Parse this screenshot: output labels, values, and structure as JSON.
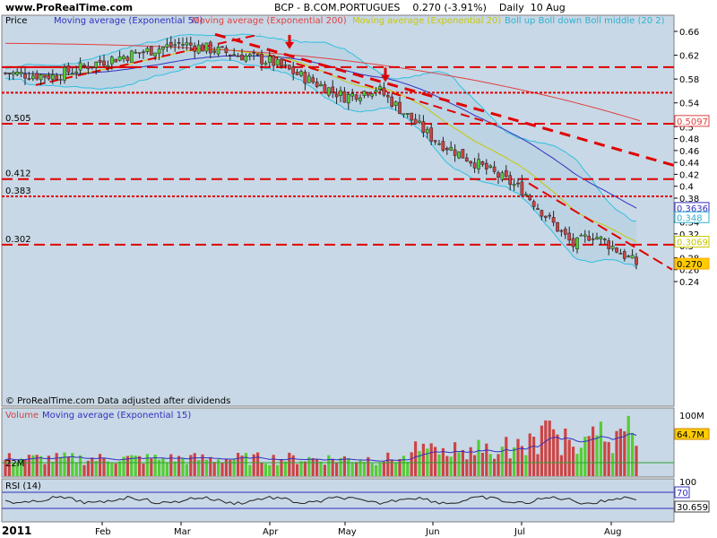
{
  "header": {
    "site": "www.ProRealTime.com",
    "symbol": "BCP - B.COM.PORTUGUES",
    "change": "0.270 (-3.91%)",
    "period": "Daily  10 Aug"
  },
  "legend": {
    "price": "Price",
    "ema50": "Moving average (Exponential 50)",
    "ema200": "Moving average (Exponential 200)",
    "ema20": "Moving average (Exponential 20)",
    "boll": "Boll up Boll down Boll middle (20 2)"
  },
  "footer_note": "© ProRealTime.com  Data adjusted after dividends",
  "volume_legend": {
    "volume": "Volume",
    "ma": "Moving average (Exponential 15)"
  },
  "rsi_legend": "RSI (14)",
  "x_labels": [
    "2011",
    "Feb",
    "Mar",
    "Apr",
    "May",
    "Jun",
    "Jul",
    "Aug"
  ],
  "price_ticks": [
    "0.66",
    "0.62",
    "0.58",
    "0.54",
    "0.5",
    "0.48",
    "0.46",
    "0.44",
    "0.42",
    "0.4",
    "0.38",
    "0.34",
    "0.32",
    "0.3",
    "0.28",
    "0.26",
    "0.24"
  ],
  "level_labels": [
    "0.505",
    "0.412",
    "0.383",
    "0.302"
  ],
  "value_boxes": [
    {
      "text": "0.5097",
      "price": 0.5097,
      "color": "#e04040"
    },
    {
      "text": "0.3636",
      "price": 0.3636,
      "color": "#3030c0"
    },
    {
      "text": "0.348",
      "price": 0.348,
      "color": "#30b0d0"
    },
    {
      "text": "0.3069",
      "price": 0.3069,
      "color": "#c8c800"
    },
    {
      "text": "0.270",
      "price": 0.27,
      "color": "#ffaa00"
    }
  ],
  "volume_ticks": [
    "100M",
    "22M"
  ],
  "volume_box": "64.7M",
  "rsi_ticks": [
    "100",
    "70"
  ],
  "rsi_boxes": [
    "70",
    "30.659"
  ],
  "colors": {
    "panel_bg": "#c8d8e6",
    "up": "#55cc33",
    "down": "#cc4444",
    "ema50": "#3030c0",
    "ema200": "#e04040",
    "ema20": "#c8c800",
    "boll": "#30c0e0",
    "trend": "#e00000",
    "volume_ma": "#3030c0"
  },
  "chart_data": {
    "type": "candlestick",
    "title": "BCP - B.COM.PORTUGUES",
    "ylim": [
      0.23,
      0.67
    ],
    "horizontal_levels": [
      0.6,
      0.557,
      0.505,
      0.412,
      0.383,
      0.302
    ],
    "close_path": [
      {
        "x": "Jan",
        "y": 0.59
      },
      {
        "x": "mid-Jan",
        "y": 0.585
      },
      {
        "x": "Feb",
        "y": 0.61
      },
      {
        "x": "Mar",
        "y": 0.64
      },
      {
        "x": "Apr",
        "y": 0.61
      },
      {
        "x": "May",
        "y": 0.55
      },
      {
        "x": "mid-May",
        "y": 0.565
      },
      {
        "x": "Jun",
        "y": 0.48
      },
      {
        "x": "Jul",
        "y": 0.395
      },
      {
        "x": "mid-Jul",
        "y": 0.3
      },
      {
        "x": "late-Jul",
        "y": 0.32
      },
      {
        "x": "Aug",
        "y": 0.3
      },
      {
        "x": "10 Aug",
        "y": 0.27
      }
    ],
    "last": 0.27,
    "change_pct": -3.91
  }
}
